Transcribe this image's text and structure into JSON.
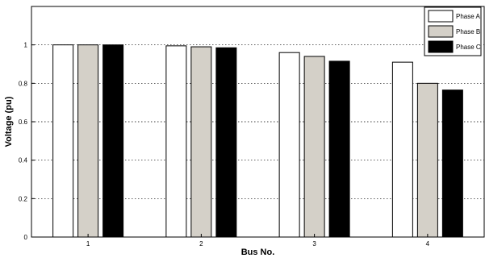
{
  "chart_data": {
    "type": "bar",
    "xlabel": "Bus No.",
    "ylabel": "Voltage (pu)",
    "categories": [
      "1",
      "2",
      "3",
      "4"
    ],
    "ylim": [
      0,
      1.2
    ],
    "yticks": [
      "0",
      "0.2",
      "0.4",
      "0.6",
      "0.8",
      "1"
    ],
    "grid": "horizontal dotted",
    "legend_position": "top-right",
    "series": [
      {
        "name": "Phase A",
        "values": [
          1.0,
          0.995,
          0.96,
          0.91
        ],
        "color": "#ffffff"
      },
      {
        "name": "Phase B",
        "values": [
          1.0,
          0.99,
          0.94,
          0.8
        ],
        "color": "#d4d0c8"
      },
      {
        "name": "Phase C",
        "values": [
          1.0,
          0.985,
          0.915,
          0.765
        ],
        "color": "#000000"
      }
    ]
  }
}
